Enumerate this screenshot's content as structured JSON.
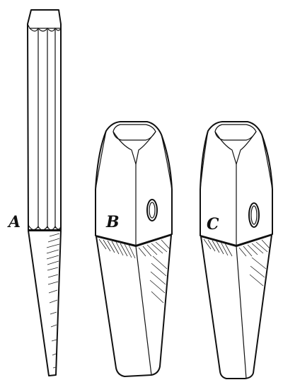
{
  "figure": {
    "labels": {
      "a": "A",
      "b": "B",
      "c": "C"
    }
  }
}
